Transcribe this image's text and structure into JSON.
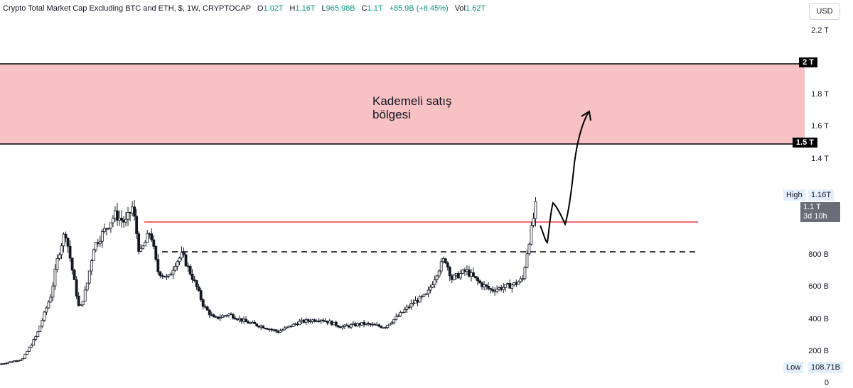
{
  "legend": {
    "symbol": "Crypto Total Market Cap Excluding BTC and ETH, $, 1W, CRYPTOCAP",
    "o_key": "O",
    "o_val": "1.02T",
    "h_key": "H",
    "h_val": "1.16T",
    "l_key": "L",
    "l_val": "965.98B",
    "c_key": "C",
    "c_val": "1.1T",
    "chg": "+85.9B (+8.45%)",
    "vol_key": "Vol",
    "vol_val": "1.62T"
  },
  "currency_button": "USD",
  "y_axis": {
    "ticks": [
      {
        "label": "2.2 T",
        "value": 2.2
      },
      {
        "label": "1.8 T",
        "value": 1.8
      },
      {
        "label": "1.6 T",
        "value": 1.6
      },
      {
        "label": "1.4 T",
        "value": 1.4
      },
      {
        "label": "800 B",
        "value": 0.8
      },
      {
        "label": "600 B",
        "value": 0.6
      },
      {
        "label": "400 B",
        "value": 0.4
      },
      {
        "label": "200 B",
        "value": 0.2
      },
      {
        "label": "0",
        "value": 0
      }
    ],
    "badges": [
      {
        "label": "2 T",
        "value": 2.0
      },
      {
        "label": "1.5 T",
        "value": 1.5
      }
    ],
    "high_label": "High",
    "high_value": "1.16T",
    "low_label": "Low",
    "low_value": "108.71B",
    "last_price": "1.1 T",
    "countdown": "3d 10h"
  },
  "annotation": {
    "zone_line1": "Kademeli satış",
    "zone_line2": "bölgesi"
  },
  "colors": {
    "up": "#089981",
    "down": "#131722",
    "candle": "#131722",
    "zone_fill": "#f8c1c4",
    "resistance": "#f23645"
  },
  "chart_data": {
    "type": "candlestick",
    "title": "Crypto Total Market Cap Excluding BTC and ETH, $, 1W, CRYPTOCAP",
    "units": "USD (trillions)",
    "ylim": [
      0,
      2.35
    ],
    "zone": {
      "from": 1.5,
      "to": 2.0,
      "label": "Kademeli satış bölgesi"
    },
    "resistance_level": 1.0,
    "support_level_dashed": 0.82,
    "projection": [
      [
        1.02,
        0.88
      ],
      [
        1.06,
        1.16
      ],
      [
        1.09,
        1.0
      ],
      [
        1.14,
        1.7
      ]
    ],
    "x_start": 0,
    "x_end": 1,
    "close_path": [
      [
        0.0,
        0.12
      ],
      [
        0.03,
        0.15
      ],
      [
        0.05,
        0.3
      ],
      [
        0.07,
        0.55
      ],
      [
        0.08,
        0.8
      ],
      [
        0.09,
        0.95
      ],
      [
        0.1,
        0.7
      ],
      [
        0.11,
        0.45
      ],
      [
        0.12,
        0.6
      ],
      [
        0.13,
        0.85
      ],
      [
        0.145,
        0.95
      ],
      [
        0.16,
        1.05
      ],
      [
        0.175,
        1.0
      ],
      [
        0.185,
        1.1
      ],
      [
        0.195,
        0.8
      ],
      [
        0.21,
        0.95
      ],
      [
        0.22,
        0.7
      ],
      [
        0.235,
        0.65
      ],
      [
        0.245,
        0.75
      ],
      [
        0.255,
        0.8
      ],
      [
        0.265,
        0.7
      ],
      [
        0.275,
        0.6
      ],
      [
        0.285,
        0.48
      ],
      [
        0.3,
        0.4
      ],
      [
        0.32,
        0.43
      ],
      [
        0.345,
        0.38
      ],
      [
        0.37,
        0.35
      ],
      [
        0.39,
        0.32
      ],
      [
        0.42,
        0.38
      ],
      [
        0.45,
        0.4
      ],
      [
        0.48,
        0.35
      ],
      [
        0.51,
        0.37
      ],
      [
        0.54,
        0.35
      ],
      [
        0.56,
        0.42
      ],
      [
        0.58,
        0.5
      ],
      [
        0.6,
        0.55
      ],
      [
        0.615,
        0.7
      ],
      [
        0.625,
        0.78
      ],
      [
        0.635,
        0.65
      ],
      [
        0.655,
        0.7
      ],
      [
        0.675,
        0.62
      ],
      [
        0.69,
        0.58
      ],
      [
        0.71,
        0.6
      ],
      [
        0.725,
        0.62
      ],
      [
        0.735,
        0.65
      ],
      [
        0.742,
        0.85
      ],
      [
        0.748,
        0.98
      ],
      [
        0.753,
        1.1
      ]
    ]
  }
}
